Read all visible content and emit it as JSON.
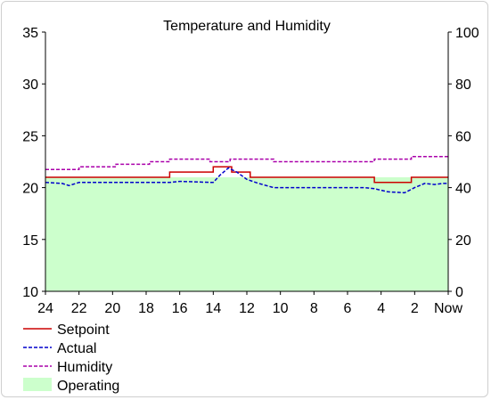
{
  "chart_data": {
    "type": "line",
    "title": "Temperature and Humidity",
    "x_tick_labels": [
      "24",
      "22",
      "20",
      "18",
      "16",
      "14",
      "12",
      "10",
      "8",
      "6",
      "4",
      "2",
      "Now"
    ],
    "x_range": [
      24,
      0
    ],
    "y_left": {
      "range": [
        10,
        35
      ],
      "ticks": [
        10,
        15,
        20,
        25,
        30,
        35
      ]
    },
    "y_right": {
      "range": [
        0,
        100
      ],
      "ticks": [
        0,
        20,
        40,
        60,
        80,
        100
      ]
    },
    "legend_position": "bottom-left",
    "series": [
      {
        "name": "Setpoint",
        "axis": "left",
        "style": "solid",
        "color": "#cc0000",
        "kind": "step",
        "points": [
          [
            24,
            21.0
          ],
          [
            16.6,
            21.0
          ],
          [
            16.6,
            21.5
          ],
          [
            14.0,
            21.5
          ],
          [
            14.0,
            22.0
          ],
          [
            12.9,
            22.0
          ],
          [
            12.9,
            21.5
          ],
          [
            11.8,
            21.5
          ],
          [
            11.8,
            21.0
          ],
          [
            4.4,
            21.0
          ],
          [
            4.4,
            20.5
          ],
          [
            2.2,
            20.5
          ],
          [
            2.2,
            21.0
          ],
          [
            0,
            21.0
          ]
        ]
      },
      {
        "name": "Actual",
        "axis": "left",
        "style": "dashed",
        "color": "#0000cc",
        "kind": "line",
        "points": [
          [
            24,
            20.5
          ],
          [
            23.0,
            20.4
          ],
          [
            22.6,
            20.2
          ],
          [
            22.0,
            20.5
          ],
          [
            19.0,
            20.5
          ],
          [
            16.6,
            20.5
          ],
          [
            16.0,
            20.6
          ],
          [
            14.0,
            20.5
          ],
          [
            13.6,
            21.2
          ],
          [
            13.1,
            21.9
          ],
          [
            12.6,
            21.5
          ],
          [
            12.0,
            20.8
          ],
          [
            11.3,
            20.4
          ],
          [
            10.4,
            20.0
          ],
          [
            8.0,
            20.0
          ],
          [
            5.0,
            20.0
          ],
          [
            4.4,
            19.9
          ],
          [
            3.6,
            19.6
          ],
          [
            2.6,
            19.5
          ],
          [
            2.0,
            20.0
          ],
          [
            1.4,
            20.4
          ],
          [
            0.8,
            20.3
          ],
          [
            0.3,
            20.4
          ],
          [
            0,
            20.4
          ]
        ]
      },
      {
        "name": "Humidity",
        "axis": "right",
        "style": "dashed",
        "color": "#aa00aa",
        "kind": "step",
        "points": [
          [
            24,
            47.0
          ],
          [
            22.0,
            47.0
          ],
          [
            22.0,
            48.0
          ],
          [
            19.8,
            48.0
          ],
          [
            19.8,
            49.0
          ],
          [
            17.8,
            49.0
          ],
          [
            17.8,
            50.0
          ],
          [
            16.6,
            50.0
          ],
          [
            16.6,
            51.0
          ],
          [
            14.2,
            51.0
          ],
          [
            14.2,
            50.0
          ],
          [
            13.0,
            50.0
          ],
          [
            13.0,
            51.0
          ],
          [
            10.4,
            51.0
          ],
          [
            10.4,
            50.0
          ],
          [
            4.4,
            50.0
          ],
          [
            4.4,
            51.0
          ],
          [
            2.2,
            51.0
          ],
          [
            2.2,
            52.0
          ],
          [
            0,
            52.0
          ]
        ]
      },
      {
        "name": "Operating",
        "axis": "left",
        "style": "area",
        "color": "#ccffcc",
        "kind": "area",
        "points": [
          [
            24,
            21.0
          ],
          [
            0,
            21.0
          ]
        ]
      }
    ]
  }
}
